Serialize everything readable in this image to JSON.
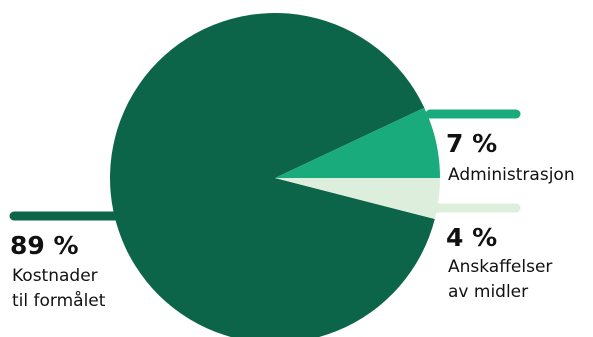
{
  "chart_data": {
    "type": "pie",
    "title": "",
    "slices": [
      {
        "label_lines": [
          "Kostnader",
          "til formålet"
        ],
        "value": 89,
        "percent_label": "89 %",
        "color": "#0d6549"
      },
      {
        "label_lines": [
          "Administrasjon"
        ],
        "value": 7,
        "percent_label": "7 %",
        "color": "#1aab7c"
      },
      {
        "label_lines": [
          "Anskaffelser",
          "av midler"
        ],
        "value": 4,
        "percent_label": "4 %",
        "color": "#ddeedd"
      }
    ]
  }
}
